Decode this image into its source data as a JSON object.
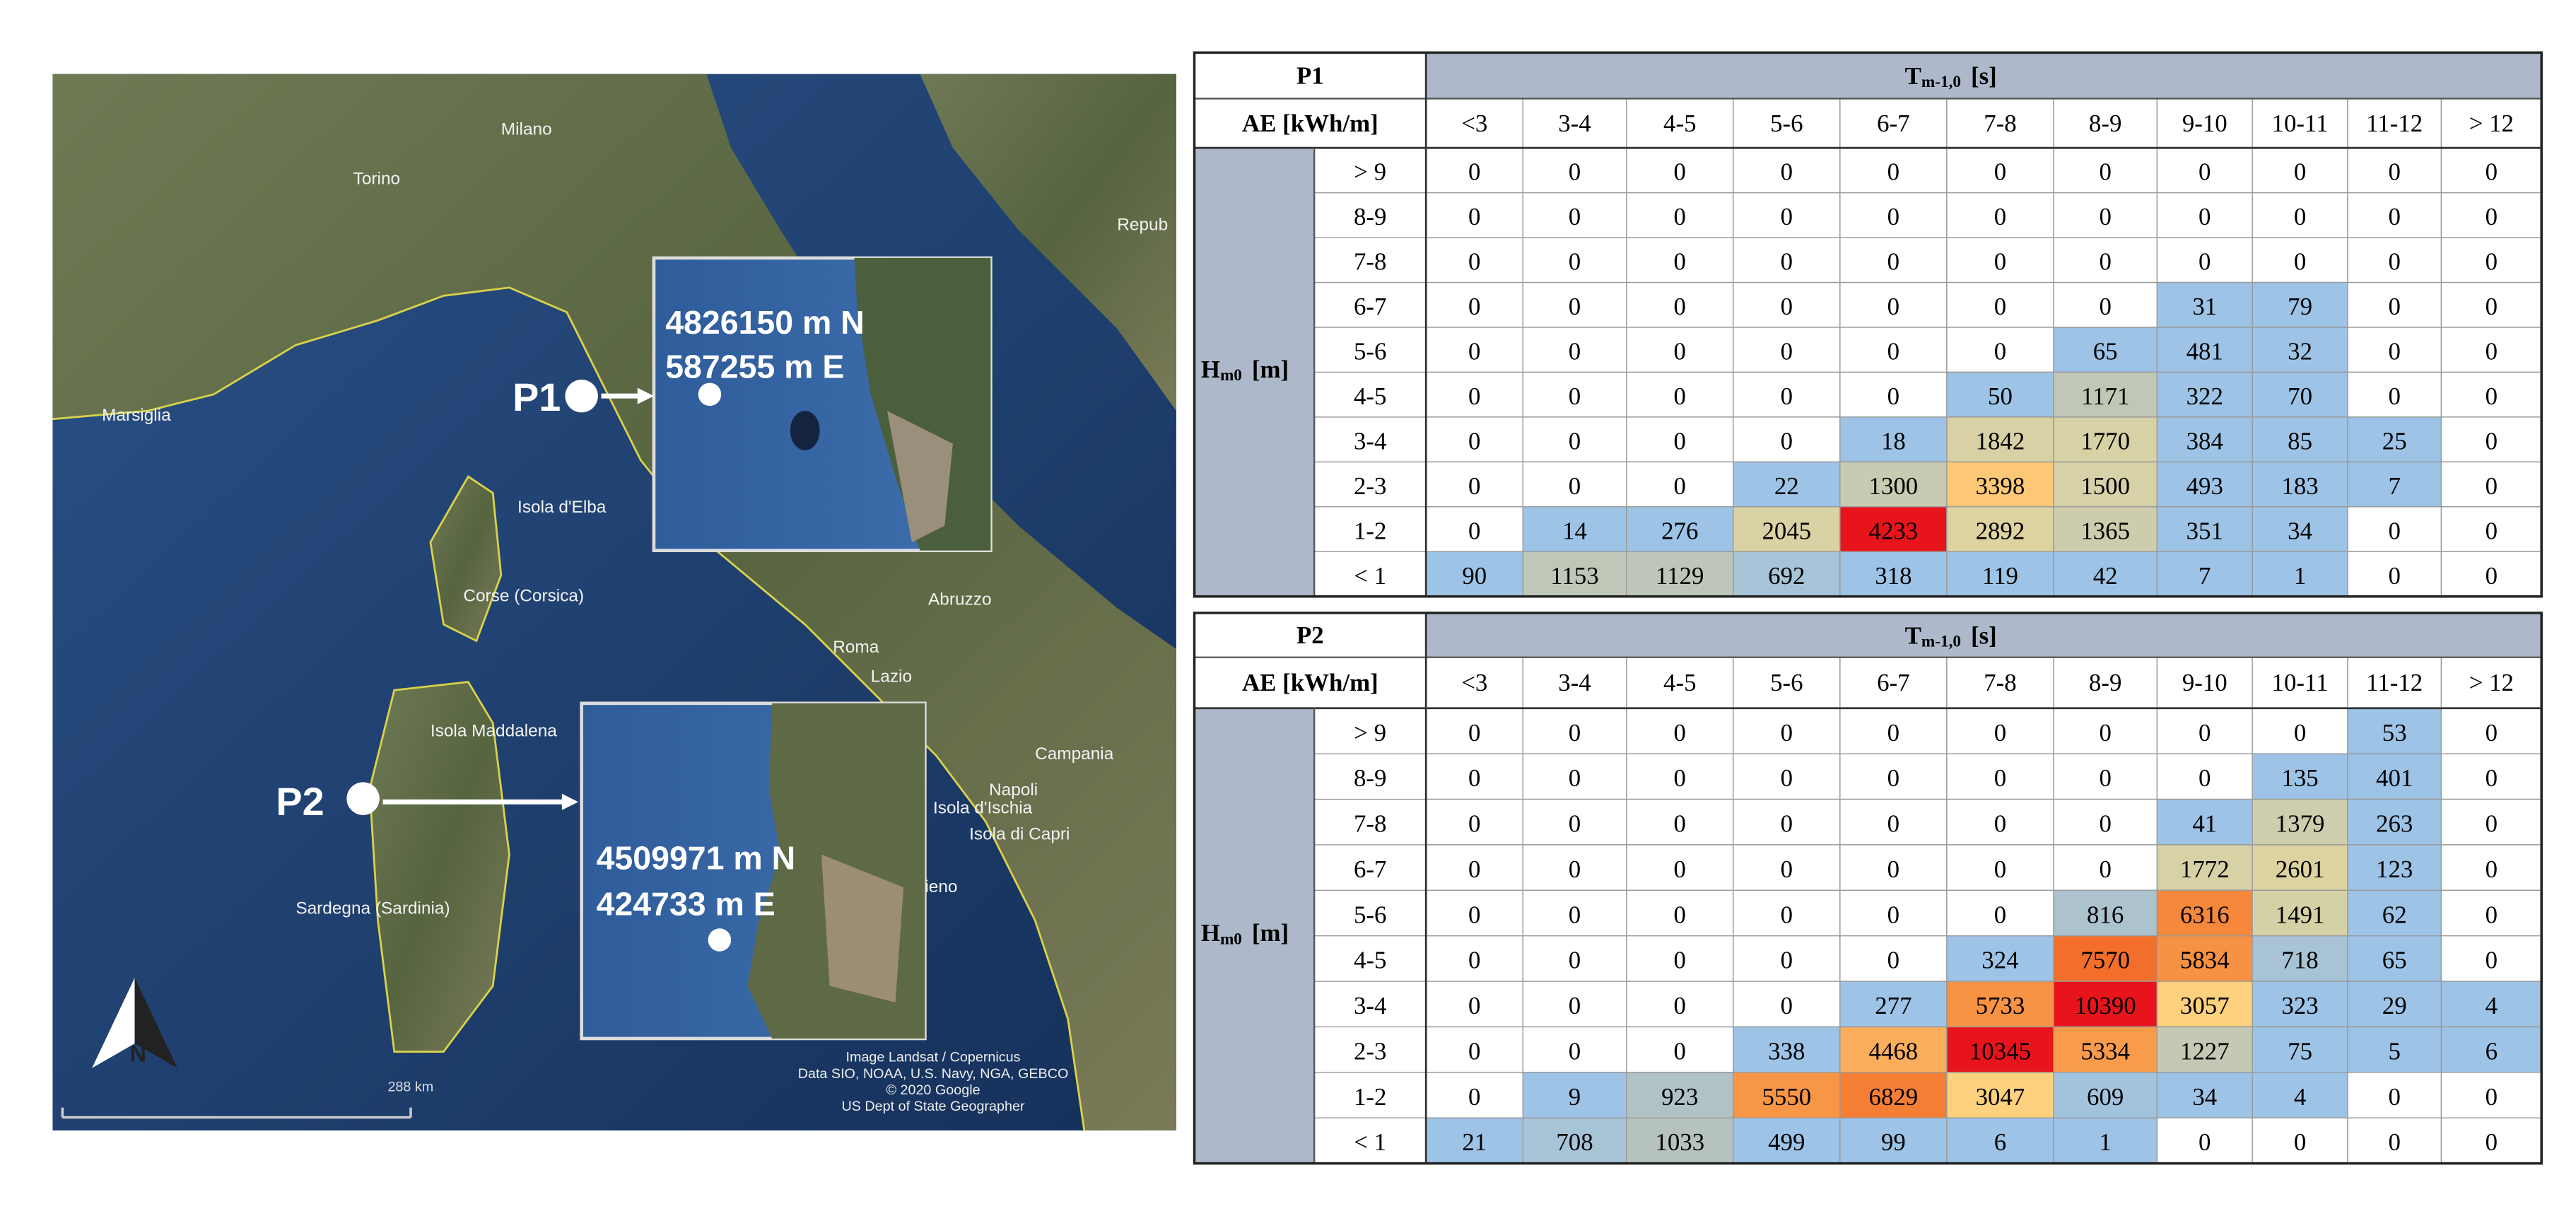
{
  "map": {
    "places": [
      "Milano",
      "Torino",
      "Repub",
      "Marsiglia",
      "Isola d'Elba",
      "Corse (Corsica)",
      "Abruzzo",
      "Roma",
      "Lazio",
      "Isola Maddalena",
      "Campania",
      "Napoli",
      "Isola d'Ischia",
      "Isola di Capri",
      "ieno",
      "Sardegna (Sardinia)"
    ],
    "attribution": [
      "Image Landsat / Copernicus",
      "Data SIO, NOAA, U.S. Navy, NGA, GEBCO",
      "© 2020 Google",
      "US Dept of State Geographer"
    ],
    "scale": "288 km",
    "north": "N",
    "points": [
      {
        "name": "P1",
        "northing": "4826150 m N",
        "easting": "587255 m E"
      },
      {
        "name": "P2",
        "northing": "4509971 m N",
        "easting": "424733 m E"
      }
    ]
  },
  "tables": [
    {
      "label": "P1",
      "col_header": {
        "symbol": "T",
        "sub": "m-1,0",
        "unit": "[s]"
      },
      "corner": "AE [kWh/m]",
      "row_header": {
        "symbol": "H",
        "sub": "m0",
        "unit": "[m]"
      },
      "columns": [
        "<3",
        "3-4",
        "4-5",
        "5-6",
        "6-7",
        "7-8",
        "8-9",
        "9-10",
        "10-11",
        "11-12",
        "> 12"
      ],
      "rows": [
        "> 9",
        "8-9",
        "7-8",
        "6-7",
        "5-6",
        "4-5",
        "3-4",
        "2-3",
        "1-2",
        "< 1"
      ],
      "values": [
        [
          0,
          0,
          0,
          0,
          0,
          0,
          0,
          0,
          0,
          0,
          0
        ],
        [
          0,
          0,
          0,
          0,
          0,
          0,
          0,
          0,
          0,
          0,
          0
        ],
        [
          0,
          0,
          0,
          0,
          0,
          0,
          0,
          0,
          0,
          0,
          0
        ],
        [
          0,
          0,
          0,
          0,
          0,
          0,
          0,
          31,
          79,
          0,
          0
        ],
        [
          0,
          0,
          0,
          0,
          0,
          0,
          65,
          481,
          32,
          0,
          0
        ],
        [
          0,
          0,
          0,
          0,
          0,
          50,
          1171,
          322,
          70,
          0,
          0
        ],
        [
          0,
          0,
          0,
          0,
          18,
          1842,
          1770,
          384,
          85,
          25,
          0
        ],
        [
          0,
          0,
          0,
          22,
          1300,
          3398,
          1500,
          493,
          183,
          7,
          0
        ],
        [
          0,
          14,
          276,
          2045,
          4233,
          2892,
          1365,
          351,
          34,
          0,
          0
        ],
        [
          90,
          1153,
          1129,
          692,
          318,
          119,
          42,
          7,
          1,
          0,
          0
        ]
      ]
    },
    {
      "label": "P2",
      "col_header": {
        "symbol": "T",
        "sub": "m-1,0",
        "unit": "[s]"
      },
      "corner": "AE [kWh/m]",
      "row_header": {
        "symbol": "H",
        "sub": "m0",
        "unit": "[m]"
      },
      "columns": [
        "<3",
        "3-4",
        "4-5",
        "5-6",
        "6-7",
        "7-8",
        "8-9",
        "9-10",
        "10-11",
        "11-12",
        "> 12"
      ],
      "rows": [
        "> 9",
        "8-9",
        "7-8",
        "6-7",
        "5-6",
        "4-5",
        "3-4",
        "2-3",
        "1-2",
        "< 1"
      ],
      "values": [
        [
          0,
          0,
          0,
          0,
          0,
          0,
          0,
          0,
          0,
          53,
          0
        ],
        [
          0,
          0,
          0,
          0,
          0,
          0,
          0,
          0,
          135,
          401,
          0
        ],
        [
          0,
          0,
          0,
          0,
          0,
          0,
          0,
          41,
          1379,
          263,
          0
        ],
        [
          0,
          0,
          0,
          0,
          0,
          0,
          0,
          1772,
          2601,
          123,
          0
        ],
        [
          0,
          0,
          0,
          0,
          0,
          0,
          816,
          6316,
          1491,
          62,
          0
        ],
        [
          0,
          0,
          0,
          0,
          0,
          324,
          7570,
          5834,
          718,
          65,
          0
        ],
        [
          0,
          0,
          0,
          0,
          277,
          5733,
          10390,
          3057,
          323,
          29,
          4
        ],
        [
          0,
          0,
          0,
          338,
          4468,
          10345,
          5334,
          1227,
          75,
          5,
          6
        ],
        [
          0,
          9,
          923,
          5550,
          6829,
          3047,
          609,
          34,
          4,
          0,
          0
        ],
        [
          21,
          708,
          1033,
          499,
          99,
          6,
          1,
          0,
          0,
          0,
          0
        ]
      ]
    }
  ]
}
